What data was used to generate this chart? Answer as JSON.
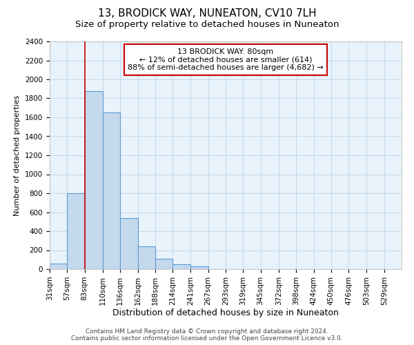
{
  "title": "13, BRODICK WAY, NUNEATON, CV10 7LH",
  "subtitle": "Size of property relative to detached houses in Nuneaton",
  "xlabel": "Distribution of detached houses by size in Nuneaton",
  "ylabel": "Number of detached properties",
  "footer_line1": "Contains HM Land Registry data © Crown copyright and database right 2024.",
  "footer_line2": "Contains public sector information licensed under the Open Government Licence v3.0.",
  "annotation_title": "13 BRODICK WAY: 80sqm",
  "annotation_line1": "← 12% of detached houses are smaller (614)",
  "annotation_line2": "88% of semi-detached houses are larger (4,682) →",
  "bar_edges": [
    31,
    57,
    83,
    110,
    136,
    162,
    188,
    214,
    241,
    267,
    293,
    319,
    345,
    372,
    398,
    424,
    450,
    476,
    503,
    529,
    555
  ],
  "bar_heights": [
    60,
    800,
    1880,
    1650,
    540,
    240,
    110,
    50,
    30,
    0,
    0,
    0,
    0,
    0,
    0,
    0,
    0,
    0,
    0,
    0
  ],
  "bar_color": "#c5d9ee",
  "bar_edge_color": "#5b9bd5",
  "vline_x": 83,
  "vline_color": "#cc0000",
  "annotation_box_color": "#cc0000",
  "ylim": [
    0,
    2400
  ],
  "yticks": [
    0,
    200,
    400,
    600,
    800,
    1000,
    1200,
    1400,
    1600,
    1800,
    2000,
    2200,
    2400
  ],
  "grid_color": "#c8daea",
  "bg_color": "#e8f3fb",
  "title_fontsize": 11,
  "subtitle_fontsize": 9.5,
  "xlabel_fontsize": 9,
  "ylabel_fontsize": 8,
  "tick_fontsize": 7.5,
  "ann_fontsize": 8,
  "footer_fontsize": 6.5
}
